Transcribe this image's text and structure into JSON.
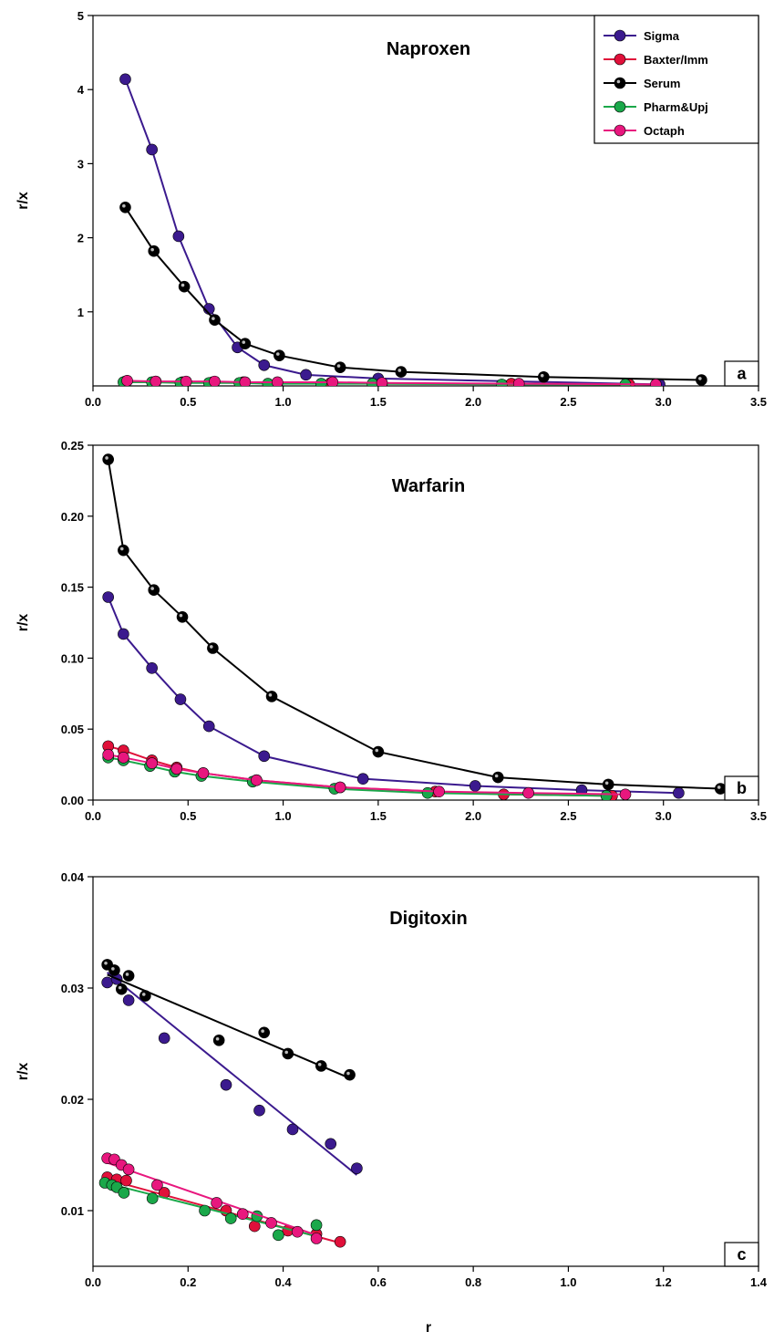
{
  "figure": {
    "xlabel_common": "r"
  },
  "legend": {
    "entries": [
      {
        "name": "Sigma",
        "color": "#3b1a8e"
      },
      {
        "name": "Baxter/Imm",
        "color": "#e0103a"
      },
      {
        "name": "Serum",
        "color": "#000000"
      },
      {
        "name": "Pharm&Upj",
        "color": "#1aa84a"
      },
      {
        "name": "Octaph",
        "color": "#e8177e"
      }
    ]
  },
  "chart_data": [
    {
      "type": "line",
      "title": "Naproxen",
      "panel_label": "a",
      "xlabel": "",
      "ylabel": "r/x",
      "xlim": [
        0,
        3.5
      ],
      "ylim": [
        0,
        5
      ],
      "xticks": [
        "0.0",
        "0.5",
        "1.0",
        "1.5",
        "2.0",
        "2.5",
        "3.0",
        "3.5"
      ],
      "xtick_values": [
        0,
        0.5,
        1.0,
        1.5,
        2.0,
        2.5,
        3.0,
        3.5
      ],
      "yticks": [
        "1",
        "2",
        "3",
        "4",
        "5"
      ],
      "ytick_values": [
        1,
        2,
        3,
        4,
        5
      ],
      "series": [
        {
          "name": "Sigma",
          "color": "#3b1a8e",
          "x": [
            0.17,
            0.31,
            0.45,
            0.61,
            0.76,
            0.9,
            1.12,
            1.5,
            2.98
          ],
          "y": [
            4.14,
            3.19,
            2.02,
            1.04,
            0.52,
            0.28,
            0.15,
            0.1,
            0.02
          ]
        },
        {
          "name": "Baxter/Imm",
          "color": "#e0103a",
          "x": [
            0.17,
            0.33,
            0.47,
            0.63,
            0.79,
            0.97,
            1.25,
            1.52,
            2.2,
            2.82
          ],
          "y": [
            0.06,
            0.06,
            0.05,
            0.05,
            0.05,
            0.04,
            0.04,
            0.03,
            0.03,
            0.02
          ]
        },
        {
          "name": "Serum",
          "color": "#000000",
          "x": [
            0.17,
            0.32,
            0.48,
            0.64,
            0.8,
            0.98,
            1.3,
            1.62,
            2.37,
            3.2
          ],
          "y": [
            2.41,
            1.82,
            1.34,
            0.89,
            0.57,
            0.41,
            0.25,
            0.19,
            0.12,
            0.08
          ]
        },
        {
          "name": "Pharm&Upj",
          "color": "#1aa84a",
          "x": [
            0.16,
            0.31,
            0.46,
            0.61,
            0.77,
            0.92,
            1.2,
            1.47,
            2.15,
            2.8
          ],
          "y": [
            0.05,
            0.05,
            0.04,
            0.04,
            0.04,
            0.03,
            0.03,
            0.03,
            0.02,
            0.02
          ]
        },
        {
          "name": "Octaph",
          "color": "#e8177e",
          "x": [
            0.18,
            0.33,
            0.49,
            0.64,
            0.8,
            0.97,
            1.26,
            1.52,
            2.24,
            2.96
          ],
          "y": [
            0.07,
            0.06,
            0.06,
            0.06,
            0.05,
            0.05,
            0.05,
            0.04,
            0.03,
            0.02
          ]
        }
      ]
    },
    {
      "type": "line",
      "title": "Warfarin",
      "panel_label": "b",
      "xlabel": "",
      "ylabel": "r/x",
      "xlim": [
        0,
        3.5
      ],
      "ylim": [
        0,
        0.25
      ],
      "xticks": [
        "0.0",
        "0.5",
        "1.0",
        "1.5",
        "2.0",
        "2.5",
        "3.0",
        "3.5"
      ],
      "xtick_values": [
        0,
        0.5,
        1.0,
        1.5,
        2.0,
        2.5,
        3.0,
        3.5
      ],
      "yticks": [
        "0.00",
        "0.05",
        "0.10",
        "0.15",
        "0.20",
        "0.25"
      ],
      "ytick_values": [
        0,
        0.05,
        0.1,
        0.15,
        0.2,
        0.25
      ],
      "series": [
        {
          "name": "Sigma",
          "color": "#3b1a8e",
          "x": [
            0.08,
            0.16,
            0.31,
            0.46,
            0.61,
            0.9,
            1.42,
            2.01,
            2.57,
            3.08
          ],
          "y": [
            0.143,
            0.117,
            0.093,
            0.071,
            0.052,
            0.031,
            0.015,
            0.01,
            0.007,
            0.005
          ]
        },
        {
          "name": "Baxter/Imm",
          "color": "#e0103a",
          "x": [
            0.08,
            0.16,
            0.31,
            0.44,
            0.58,
            0.86,
            1.3,
            1.8,
            2.16,
            2.73
          ],
          "y": [
            0.038,
            0.035,
            0.028,
            0.023,
            0.019,
            0.014,
            0.009,
            0.006,
            0.004,
            0.003
          ]
        },
        {
          "name": "Serum",
          "color": "#000000",
          "x": [
            0.08,
            0.16,
            0.32,
            0.47,
            0.63,
            0.94,
            1.5,
            2.13,
            2.71,
            3.3
          ],
          "y": [
            0.24,
            0.176,
            0.148,
            0.129,
            0.107,
            0.073,
            0.034,
            0.016,
            0.011,
            0.008
          ]
        },
        {
          "name": "Pharm&Upj",
          "color": "#1aa84a",
          "x": [
            0.08,
            0.16,
            0.3,
            0.43,
            0.57,
            0.84,
            1.27,
            1.76,
            2.7
          ],
          "y": [
            0.03,
            0.028,
            0.024,
            0.02,
            0.017,
            0.013,
            0.008,
            0.005,
            0.003
          ]
        },
        {
          "name": "Octaph",
          "color": "#e8177e",
          "x": [
            0.08,
            0.16,
            0.31,
            0.44,
            0.58,
            0.86,
            1.3,
            1.82,
            2.29,
            2.8
          ],
          "y": [
            0.032,
            0.03,
            0.026,
            0.022,
            0.019,
            0.014,
            0.009,
            0.006,
            0.005,
            0.004
          ]
        }
      ]
    },
    {
      "type": "scatter",
      "title": "Digitoxin",
      "panel_label": "c",
      "xlabel": "r",
      "ylabel": "r/x",
      "xlim": [
        0,
        1.4
      ],
      "ylim": [
        0.005,
        0.04
      ],
      "xticks": [
        "0.0",
        "0.2",
        "0.4",
        "0.6",
        "0.8",
        "1.0",
        "1.2",
        "1.4"
      ],
      "xtick_values": [
        0,
        0.2,
        0.4,
        0.6,
        0.8,
        1.0,
        1.2,
        1.4
      ],
      "yticks": [
        "0.01",
        "0.02",
        "0.03",
        "0.04"
      ],
      "ytick_values": [
        0.01,
        0.02,
        0.03,
        0.04
      ],
      "series": [
        {
          "name": "Sigma",
          "color": "#3b1a8e",
          "x": [
            0.03,
            0.05,
            0.075,
            0.15,
            0.28,
            0.35,
            0.42,
            0.5,
            0.555
          ],
          "y": [
            0.0305,
            0.0308,
            0.0289,
            0.0255,
            0.0213,
            0.019,
            0.0173,
            0.016,
            0.0138
          ],
          "fit": {
            "x": [
              0.03,
              0.555
            ],
            "y": [
              0.0314,
              0.0132
            ]
          }
        },
        {
          "name": "Baxter/Imm",
          "color": "#e0103a",
          "x": [
            0.03,
            0.05,
            0.07,
            0.15,
            0.28,
            0.34,
            0.41,
            0.47,
            0.52
          ],
          "y": [
            0.013,
            0.0128,
            0.0127,
            0.0116,
            0.01,
            0.0086,
            0.0082,
            0.0079,
            0.0072
          ],
          "fit": {
            "x": [
              0.03,
              0.52
            ],
            "y": [
              0.0128,
              0.0071
            ]
          }
        },
        {
          "name": "Serum",
          "color": "#000000",
          "x": [
            0.03,
            0.045,
            0.06,
            0.075,
            0.11,
            0.265,
            0.36,
            0.41,
            0.48,
            0.54
          ],
          "y": [
            0.0321,
            0.0316,
            0.0299,
            0.0311,
            0.0293,
            0.0253,
            0.026,
            0.0241,
            0.023,
            0.0222
          ],
          "fit": {
            "x": [
              0.03,
              0.54
            ],
            "y": [
              0.0312,
              0.0219
            ]
          }
        },
        {
          "name": "Pharm&Upj",
          "color": "#1aa84a",
          "x": [
            0.025,
            0.04,
            0.05,
            0.065,
            0.125,
            0.235,
            0.29,
            0.345,
            0.39,
            0.47
          ],
          "y": [
            0.0125,
            0.0123,
            0.0121,
            0.0116,
            0.0111,
            0.01,
            0.0093,
            0.0095,
            0.0078,
            0.0087
          ],
          "fit": {
            "x": [
              0.025,
              0.47
            ],
            "y": [
              0.0125,
              0.0077
            ]
          }
        },
        {
          "name": "Octaph",
          "color": "#e8177e",
          "x": [
            0.03,
            0.045,
            0.06,
            0.075,
            0.135,
            0.26,
            0.315,
            0.375,
            0.43,
            0.47
          ],
          "y": [
            0.0147,
            0.0146,
            0.0141,
            0.0137,
            0.0123,
            0.0107,
            0.0097,
            0.0089,
            0.0081,
            0.0075
          ],
          "fit": {
            "x": [
              0.03,
              0.47
            ],
            "y": [
              0.0143,
              0.0078
            ]
          }
        }
      ]
    }
  ]
}
